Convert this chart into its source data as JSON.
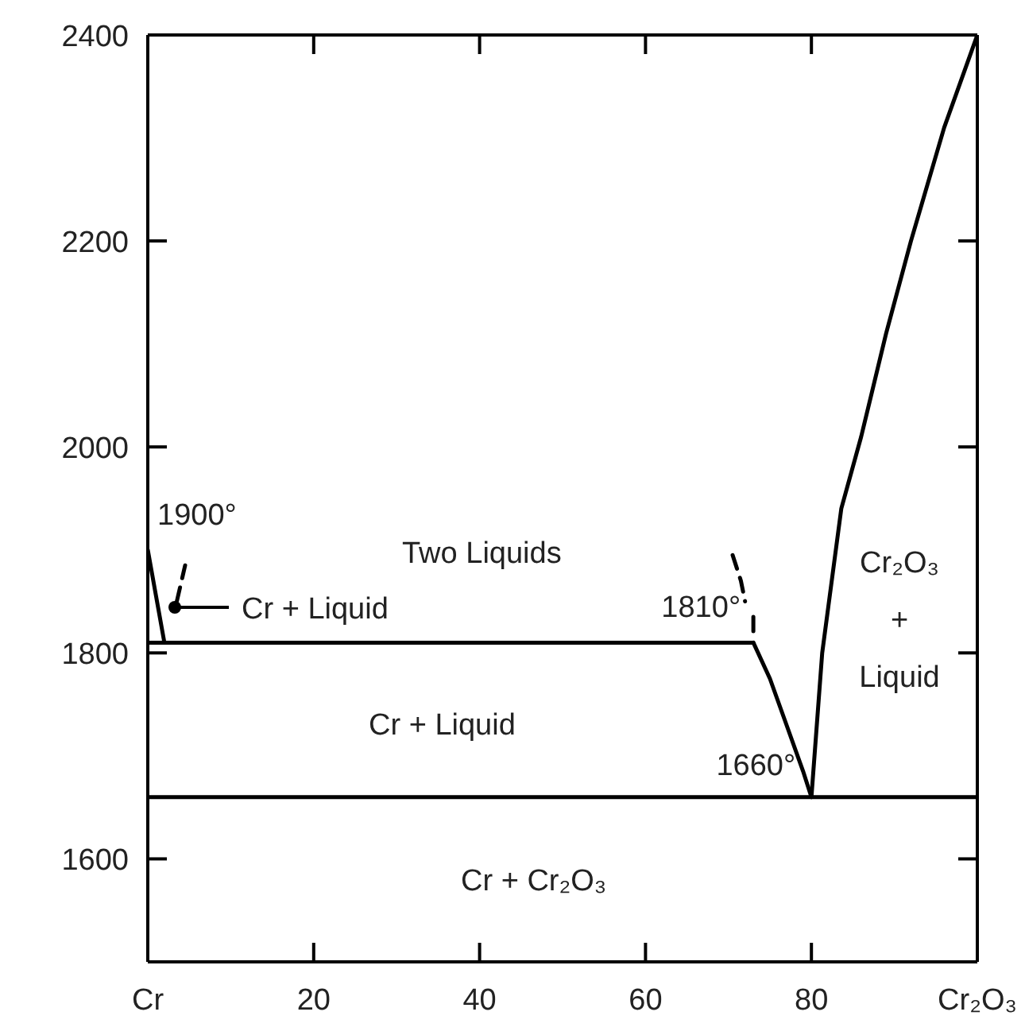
{
  "chart_data": {
    "type": "line",
    "series": [
      {
        "color": "#000000",
        "x": [
          0,
          100
        ],
        "values": [
          1660,
          1660
        ]
      },
      {
        "color": "#000000",
        "x": [
          0,
          73
        ],
        "values": [
          1810,
          1810
        ]
      },
      {
        "color": "#000000",
        "x": [
          73,
          75,
          77,
          79,
          80
        ],
        "values": [
          1810,
          1775,
          1730,
          1685,
          1660
        ]
      },
      {
        "color": "#000000",
        "x": [
          80,
          81.3,
          83.6,
          86,
          89,
          92,
          96,
          100
        ],
        "values": [
          1660,
          1800,
          1940,
          2010,
          2110,
          2200,
          2310,
          2400
        ]
      },
      {
        "color": "#000000",
        "x": [
          0,
          1,
          2
        ],
        "values": [
          1900,
          1855,
          1810
        ]
      },
      {
        "color": "#000000",
        "x": [
          3.5,
          4.5
        ],
        "values": [
          1850,
          1885
        ],
        "line_style": "dashed"
      },
      {
        "color": "#000000",
        "x": [
          70.5,
          71.5,
          72,
          null,
          73,
          73
        ],
        "values": [
          1895,
          1870,
          1850,
          null,
          1835,
          1812
        ],
        "line_style": "dashed"
      }
    ],
    "xlim": [
      0,
      100
    ],
    "xticks": [
      {
        "value": 0,
        "label": "Cr"
      },
      20,
      40,
      60,
      80,
      {
        "value": 100,
        "label": "Cr₂O₃"
      }
    ],
    "ylim": [
      1500,
      2400
    ],
    "yticks": [
      1600,
      1800,
      2000,
      2200,
      2400
    ],
    "marker": "none",
    "grid": false,
    "annotations": [
      {
        "text": "1900°",
        "x": 0,
        "y": 1900
      },
      "Two Liquids",
      "Cr + Liquid",
      {
        "text": "1810°",
        "x": 73,
        "y": 1810
      },
      "Cr₂O₃\n+\nLiquid",
      "Cr + Liquid",
      {
        "text": "1660°",
        "x": 80,
        "y": 1660
      },
      "Cr + Cr₂O₃"
    ]
  }
}
